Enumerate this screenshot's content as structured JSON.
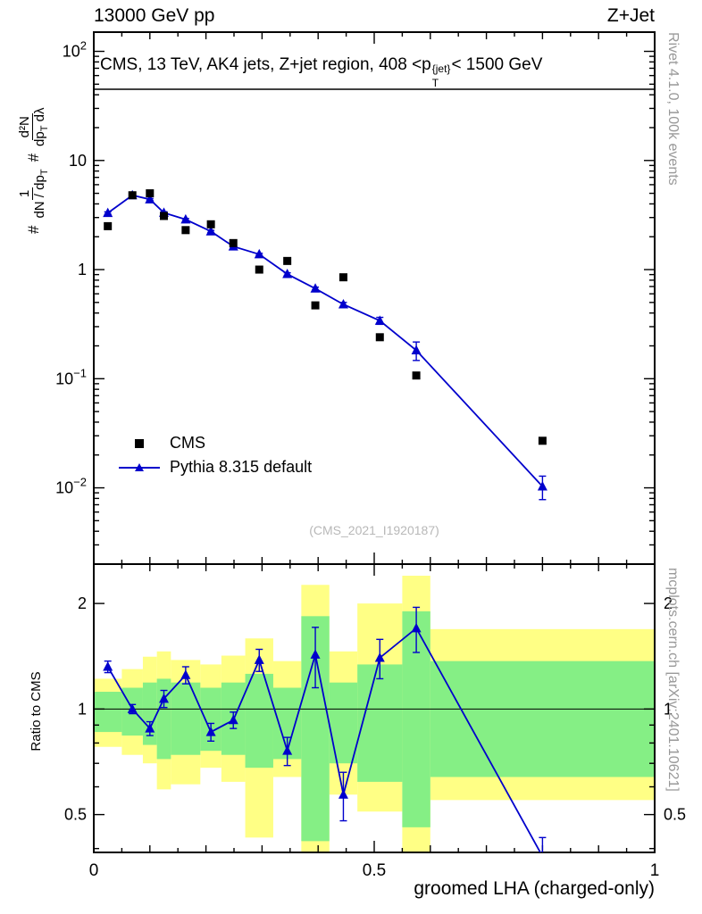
{
  "header": {
    "left": "13000 GeV pp",
    "right": "Z+Jet"
  },
  "panel_title": {
    "before": "CMS, 13 TeV, AK4 jets, Z+jet region, 408 <p",
    "sup": "{jet}",
    "sub": "T",
    "after": "< 1500 GeV"
  },
  "ylabel_parts": {
    "hash1": "#",
    "f1_num": "1",
    "f1_den_a": "dN / dp",
    "f1_den_sub": "T",
    "hash2": "#",
    "f2_num": "d²N",
    "f2_den_a": "dp",
    "f2_den_sub": "T",
    "f2_den_b": " dλ"
  },
  "side_labels": {
    "top_right": "Rivet 4.1.0,  100k events",
    "bottom_right": "mcplots.cern.ch [arXiv:2401.10621]"
  },
  "colors": {
    "band_outer": "#ffff85",
    "band_inner": "#85ef85",
    "mc_line": "#0000cc",
    "data_marker": "#000000",
    "watermark": "#b8b8b8",
    "side_text": "#999999"
  },
  "chart_data": [
    {
      "type": "line",
      "panel": "main",
      "title": "CMS, 13 TeV, AK4 jets, Z+jet region, 408 <pT{jet}< 1500 GeV",
      "watermark": "(CMS_2021_I1920187)",
      "xlim": [
        0,
        1
      ],
      "ylim": [
        0.002,
        150
      ],
      "ylog": true,
      "grid": false,
      "legend_position": "middle-left",
      "ytick_values": [
        100,
        10,
        1,
        0.1,
        0.01
      ],
      "ytick_labels": [
        {
          "base": "10",
          "exp": "2"
        },
        {
          "base": "10",
          "exp": ""
        },
        {
          "base": "1",
          "exp": ""
        },
        {
          "base": "10",
          "exp": "−1"
        },
        {
          "base": "10",
          "exp": "−2"
        }
      ],
      "series": [
        {
          "name": "CMS",
          "marker": "square",
          "color": "#000000",
          "draw_line": false,
          "x": [
            0.025,
            0.0688,
            0.1,
            0.125,
            0.1638,
            0.2088,
            0.2488,
            0.295,
            0.345,
            0.395,
            0.445,
            0.51,
            0.575,
            0.8
          ],
          "y": [
            2.5,
            4.8,
            5.0,
            3.1,
            2.3,
            2.6,
            1.75,
            1.0,
            1.2,
            0.47,
            0.85,
            0.24,
            0.107,
            0.027
          ],
          "yerr": [
            0.07,
            0.12,
            0.12,
            0.09,
            0.07,
            0.07,
            0.05,
            0.035,
            0.04,
            0.02,
            0.03,
            0.012,
            0.007,
            0.0015
          ]
        },
        {
          "name": "Pythia 8.315 default",
          "marker": "triangle",
          "color": "#0000cc",
          "draw_line": true,
          "x": [
            0.025,
            0.0688,
            0.1,
            0.125,
            0.1638,
            0.2088,
            0.2488,
            0.295,
            0.345,
            0.395,
            0.445,
            0.51,
            0.575,
            0.8
          ],
          "y": [
            3.3,
            4.8,
            4.4,
            3.32,
            2.88,
            2.24,
            1.63,
            1.38,
            0.91,
            0.67,
            0.48,
            0.34,
            0.182,
            0.0103
          ],
          "yerr": [
            0.08,
            0.09,
            0.08,
            0.07,
            0.06,
            0.05,
            0.04,
            0.03,
            0.025,
            0.02,
            0.02,
            0.025,
            0.035,
            0.0025
          ]
        }
      ]
    },
    {
      "type": "ratio",
      "panel": "ratio",
      "ylabel": "Ratio to CMS",
      "xlabel": "groomed LHA (charged-only)",
      "xlim": [
        0,
        1
      ],
      "ylim": [
        0.39,
        2.59
      ],
      "ylog": true,
      "unity_line": 1,
      "ytick_values": [
        2,
        1,
        0.5
      ],
      "ytick_labels": [
        {
          "base": "2",
          "exp": ""
        },
        {
          "base": "1",
          "exp": ""
        },
        {
          "base": "0.5",
          "exp": ""
        }
      ],
      "xtick_values": [
        0,
        0.5,
        1
      ],
      "xtick_labels": [
        "0",
        "0.5",
        "1"
      ],
      "bands": {
        "bin_edges": [
          0,
          0.05,
          0.0875,
          0.1125,
          0.1375,
          0.19,
          0.2275,
          0.27,
          0.32,
          0.37,
          0.42,
          0.47,
          0.55,
          0.6,
          1.0
        ],
        "outer": [
          [
            0.78,
            1.22
          ],
          [
            0.74,
            1.3
          ],
          [
            0.7,
            1.41
          ],
          [
            0.59,
            1.46
          ],
          [
            0.61,
            1.38
          ],
          [
            0.68,
            1.34
          ],
          [
            0.62,
            1.42
          ],
          [
            0.43,
            1.59
          ],
          [
            0.64,
            1.37
          ],
          [
            0.33,
            2.26
          ],
          [
            0.57,
            1.46
          ],
          [
            0.51,
            2.0
          ],
          [
            0.38,
            2.4
          ],
          [
            0.55,
            1.69
          ]
        ],
        "inner": [
          [
            0.86,
            1.12
          ],
          [
            0.84,
            1.15
          ],
          [
            0.79,
            1.19
          ],
          [
            0.72,
            1.22
          ],
          [
            0.74,
            1.19
          ],
          [
            0.76,
            1.15
          ],
          [
            0.74,
            1.19
          ],
          [
            0.68,
            1.26
          ],
          [
            0.72,
            1.15
          ],
          [
            0.42,
            1.84
          ],
          [
            0.7,
            1.19
          ],
          [
            0.62,
            1.34
          ],
          [
            0.46,
            1.9
          ],
          [
            0.64,
            1.37
          ]
        ]
      },
      "series": [
        {
          "name": "Pythia 8.315 default / CMS",
          "marker": "triangle",
          "color": "#0000cc",
          "draw_line": true,
          "x": [
            0.025,
            0.0688,
            0.1,
            0.125,
            0.1638,
            0.2088,
            0.2488,
            0.295,
            0.345,
            0.395,
            0.445,
            0.51,
            0.575,
            0.8
          ],
          "y": [
            1.32,
            1.0,
            0.88,
            1.07,
            1.25,
            0.86,
            0.93,
            1.38,
            0.76,
            1.43,
            0.57,
            1.4,
            1.7,
            0.38
          ],
          "yerr": [
            0.05,
            0.03,
            0.04,
            0.06,
            0.07,
            0.05,
            0.05,
            0.1,
            0.07,
            0.28,
            0.09,
            0.18,
            0.25,
            0.05
          ]
        }
      ]
    }
  ]
}
